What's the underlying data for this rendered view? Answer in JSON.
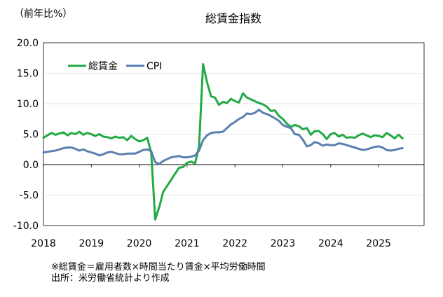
{
  "chart_data": {
    "type": "line",
    "title": "総賃金指数",
    "ylabel": "（前年比%）",
    "xlabel": "",
    "ylim": [
      -10,
      20
    ],
    "yticks": [
      "20.0",
      "15.0",
      "10.0",
      "5.0",
      "0.0",
      "-5.0",
      "-10.0"
    ],
    "ytick_values": [
      20,
      15,
      10,
      5,
      0,
      -5,
      -10
    ],
    "xlim": [
      2018.0,
      2025.95
    ],
    "xticks": [
      "2018",
      "2019",
      "2020",
      "2021",
      "2022",
      "2023",
      "2024",
      "2025"
    ],
    "xtick_values": [
      2018,
      2019,
      2020,
      2021,
      2022,
      2023,
      2024,
      2025
    ],
    "grid": "horizontal",
    "legend": "top-left",
    "x_start": "2018-01",
    "x_step": "monthly",
    "series": [
      {
        "name": "総賃金",
        "color": "#22aa44",
        "values": [
          4.4,
          4.8,
          5.2,
          4.9,
          5.1,
          5.3,
          4.8,
          5.2,
          5.0,
          5.4,
          4.9,
          5.2,
          5.0,
          4.7,
          5.0,
          4.6,
          4.5,
          4.3,
          4.6,
          4.4,
          4.5,
          4.0,
          4.7,
          4.2,
          3.8,
          4.0,
          4.4,
          2.0,
          -9.0,
          -7.0,
          -4.5,
          -3.5,
          -2.5,
          -1.5,
          -0.5,
          -0.4,
          0.3,
          0.5,
          0.2,
          3.0,
          16.5,
          13.5,
          11.2,
          11.0,
          9.8,
          10.3,
          10.1,
          10.8,
          10.4,
          10.2,
          11.7,
          11.0,
          10.7,
          10.4,
          10.1,
          9.9,
          9.5,
          8.8,
          8.9,
          8.0,
          7.5,
          6.7,
          6.2,
          6.5,
          6.3,
          5.8,
          6.0,
          4.9,
          5.5,
          5.5,
          5.0,
          4.2,
          5.0,
          5.2,
          4.6,
          4.9,
          4.4,
          4.5,
          4.4,
          4.8,
          5.1,
          4.8,
          4.5,
          4.8,
          4.7,
          4.5,
          5.2,
          4.8,
          4.3,
          4.9,
          4.3
        ]
      },
      {
        "name": "CPI",
        "color": "#5b7fb0",
        "values": [
          2.0,
          2.1,
          2.2,
          2.3,
          2.5,
          2.7,
          2.8,
          2.8,
          2.6,
          2.3,
          2.5,
          2.2,
          2.0,
          1.8,
          1.5,
          1.7,
          2.0,
          2.1,
          1.9,
          1.7,
          1.7,
          1.8,
          1.8,
          1.8,
          2.1,
          2.4,
          2.5,
          2.2,
          0.4,
          0.1,
          0.6,
          0.9,
          1.2,
          1.3,
          1.4,
          1.2,
          1.2,
          1.3,
          1.5,
          2.3,
          4.0,
          4.8,
          5.2,
          5.3,
          5.3,
          5.4,
          6.0,
          6.6,
          7.0,
          7.5,
          7.8,
          8.4,
          8.3,
          8.5,
          9.0,
          8.5,
          8.3,
          8.0,
          7.6,
          7.2,
          6.5,
          6.2,
          6.0,
          5.0,
          4.9,
          4.1,
          3.0,
          3.2,
          3.7,
          3.5,
          3.1,
          3.3,
          3.2,
          3.2,
          3.5,
          3.4,
          3.2,
          3.0,
          2.8,
          2.6,
          2.4,
          2.5,
          2.7,
          2.9,
          3.0,
          2.8,
          2.4,
          2.3,
          2.4,
          2.6,
          2.7
        ]
      }
    ]
  },
  "notes": {
    "line1": "※総賃金＝雇用者数×時間当たり賃金×平均労働時間",
    "line2": "出所：米労働省統計より作成"
  }
}
